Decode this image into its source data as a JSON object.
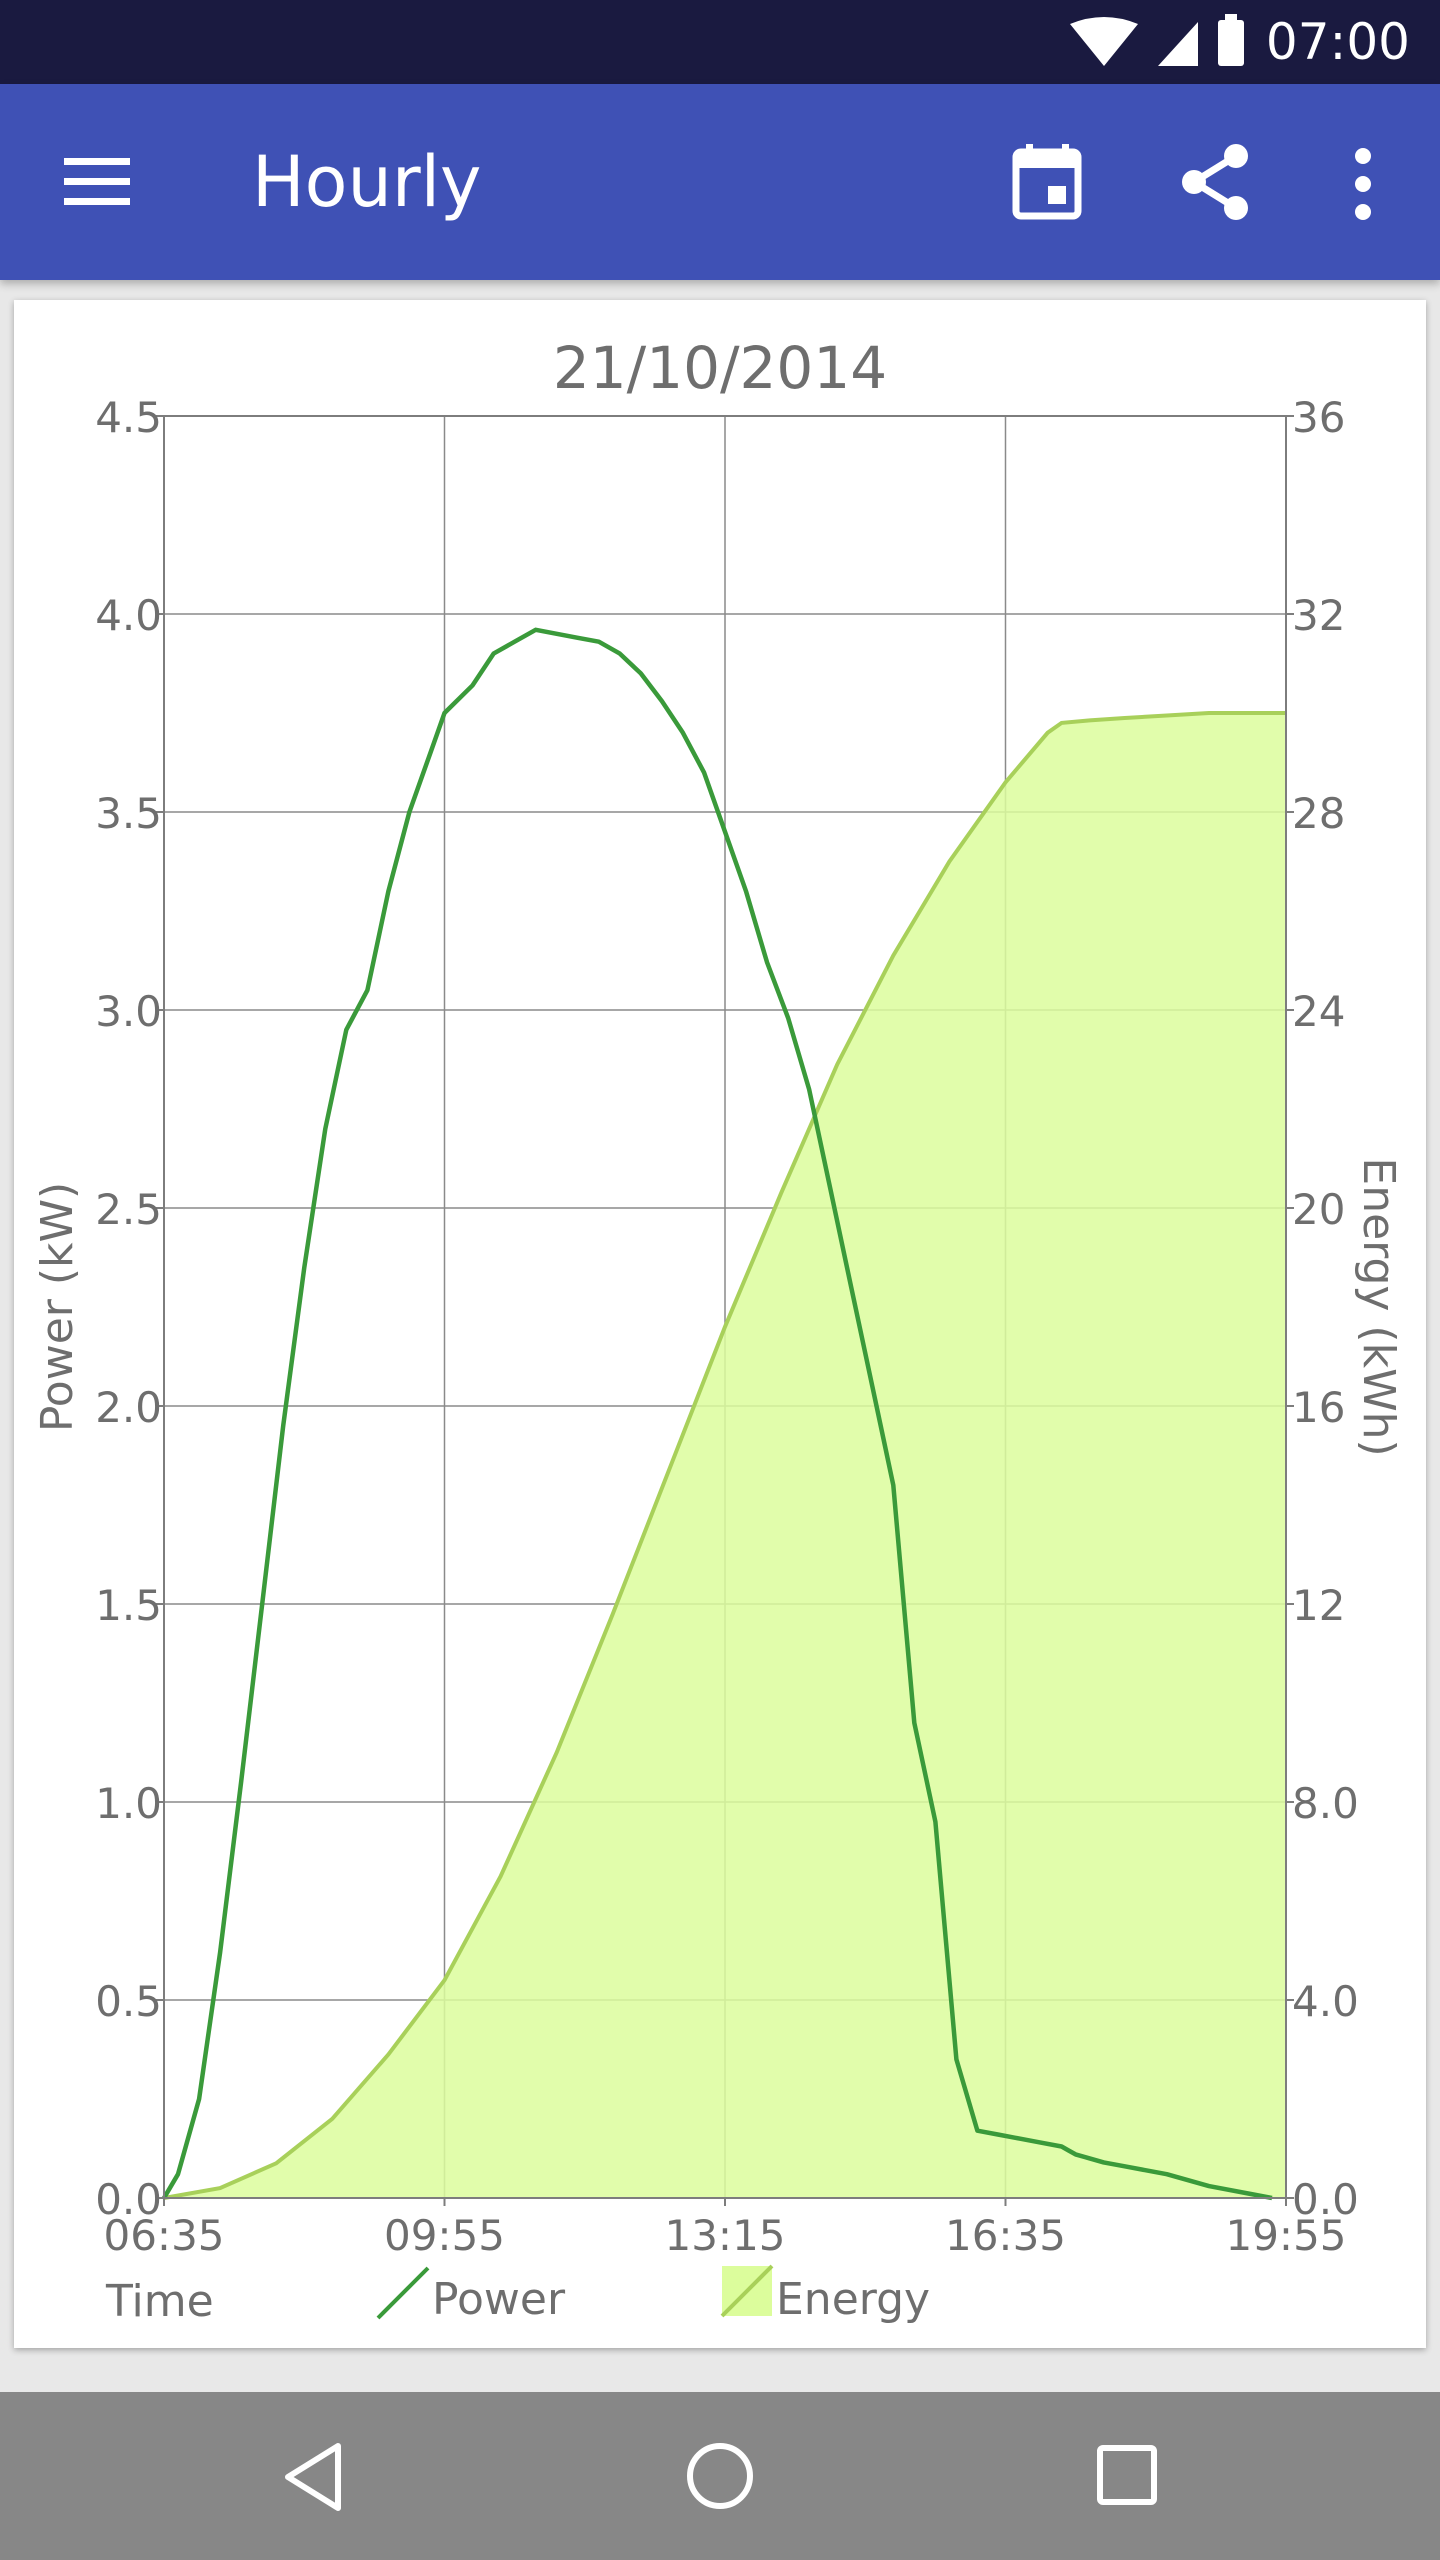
{
  "status_bar": {
    "time": "07:00"
  },
  "app_bar": {
    "title": "Hourly",
    "icons": [
      "menu-icon",
      "calendar-icon",
      "share-icon",
      "more-vert-icon"
    ]
  },
  "colors": {
    "app_bar": "#3f51b5",
    "status_bar": "#1a1a40",
    "power_line": "#3a9a3a",
    "energy_fill": "#dcfd9c",
    "energy_line": "#a8d05a"
  },
  "chart_data": {
    "type": "line",
    "title": "21/10/2014",
    "xlabel": "Time",
    "ylabel": "Power (kW)",
    "y2label": "Energy (kWh)",
    "grid": true,
    "legend_position": "bottom",
    "x_ticks": [
      "06:35",
      "09:55",
      "13:15",
      "16:35",
      "19:55"
    ],
    "y_ticks": [
      "0.0",
      "0.5",
      "1.0",
      "1.5",
      "2.0",
      "2.5",
      "3.0",
      "3.5",
      "4.0",
      "4.5"
    ],
    "y2_ticks": [
      "0.0",
      "4.0",
      "8.0",
      "12",
      "16",
      "20",
      "24",
      "28",
      "32",
      "36"
    ],
    "ylim": [
      0,
      4.5
    ],
    "y2lim": [
      0,
      36
    ],
    "series": [
      {
        "name": "Power",
        "axis": "left",
        "style": "line",
        "x": [
          "06:35",
          "06:45",
          "07:00",
          "07:15",
          "07:30",
          "07:45",
          "08:00",
          "08:15",
          "08:30",
          "08:45",
          "09:00",
          "09:15",
          "09:30",
          "09:45",
          "09:55",
          "10:15",
          "10:30",
          "10:45",
          "11:00",
          "11:15",
          "11:30",
          "11:45",
          "12:00",
          "12:15",
          "12:30",
          "12:45",
          "13:00",
          "13:15",
          "13:30",
          "13:45",
          "14:00",
          "14:15",
          "14:30",
          "14:45",
          "15:00",
          "15:15",
          "15:30",
          "15:45",
          "16:00",
          "16:15",
          "16:30",
          "16:45",
          "17:00",
          "17:15",
          "17:20",
          "17:25",
          "17:35",
          "17:45",
          "18:00",
          "18:30",
          "19:00",
          "19:30",
          "19:45"
        ],
        "values": [
          0.0,
          0.06,
          0.25,
          0.62,
          1.05,
          1.5,
          1.95,
          2.35,
          2.7,
          2.95,
          3.05,
          3.3,
          3.5,
          3.65,
          3.75,
          3.82,
          3.9,
          3.93,
          3.96,
          3.95,
          3.94,
          3.93,
          3.9,
          3.85,
          3.78,
          3.7,
          3.6,
          3.45,
          3.3,
          3.12,
          2.98,
          2.8,
          2.55,
          2.3,
          2.05,
          1.8,
          1.2,
          0.95,
          0.35,
          0.17,
          0.16,
          0.15,
          0.14,
          0.13,
          0.12,
          0.11,
          0.1,
          0.09,
          0.08,
          0.06,
          0.03,
          0.01,
          0.0
        ],
        "color": "#3a9a3a"
      },
      {
        "name": "Energy",
        "axis": "right",
        "style": "area",
        "x": [
          "06:35",
          "07:15",
          "07:55",
          "08:35",
          "09:15",
          "09:55",
          "10:35",
          "11:15",
          "11:55",
          "12:35",
          "13:15",
          "13:55",
          "14:35",
          "15:15",
          "15:55",
          "16:35",
          "17:05",
          "17:15",
          "17:35",
          "18:00",
          "18:30",
          "19:00",
          "19:55"
        ],
        "values": [
          0,
          0.2,
          0.7,
          1.6,
          2.9,
          4.4,
          6.5,
          9.0,
          11.8,
          14.7,
          17.6,
          20.3,
          22.9,
          25.1,
          27.0,
          28.6,
          29.6,
          29.8,
          29.85,
          29.9,
          29.95,
          30.0,
          30.0
        ],
        "color": "#dcfd9c"
      }
    ]
  },
  "nav_bar": {
    "icons": [
      "back-icon",
      "home-icon",
      "recents-icon"
    ]
  }
}
